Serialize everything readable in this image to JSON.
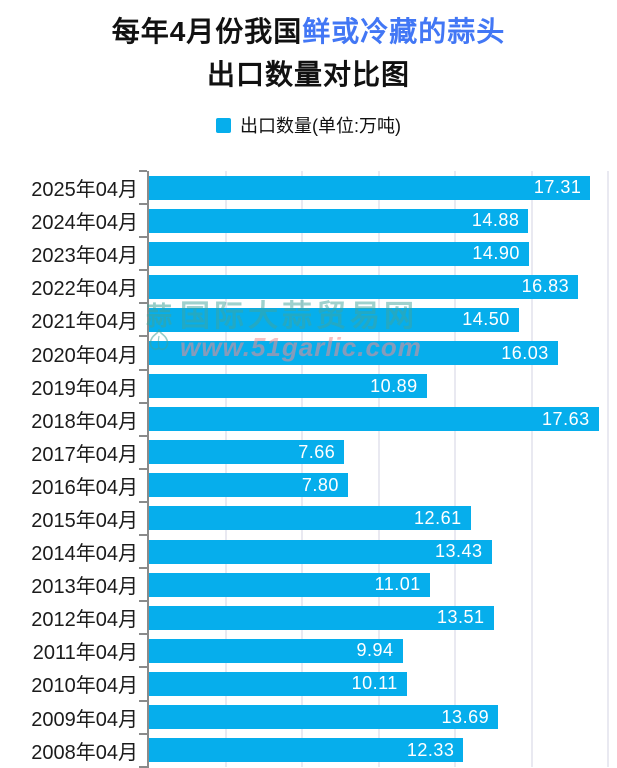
{
  "title": {
    "line1_black": "每年4月份我国",
    "line1_blue": "鲜或冷藏的蒜头",
    "line2": "出口数量对比图"
  },
  "legend": {
    "label": "出口数量(单位:万吨)"
  },
  "watermark": {
    "logo_char": "蒜",
    "site_name": "国际大蒜贸易网",
    "site_url": "www.51garlic.com"
  },
  "colors": {
    "bar": "#06AEEC",
    "title_highlight_blue": "#4277F5",
    "title_black": "#111111",
    "axis_gray": "#8A8A8A",
    "gridline": "#E9E9F1",
    "value_label_white": "#FFFFFF",
    "watermark_teal": "#40A49B",
    "watermark_pink": "#F08C91"
  },
  "chart_data": {
    "type": "bar",
    "orientation": "horizontal",
    "title": "每年4月份我国鲜或冷藏的蒜头出口数量对比图",
    "legend_entries": [
      "出口数量(单位:万吨)"
    ],
    "legend_position": "top",
    "unit": "万吨",
    "grid": "vertical-only",
    "gridline_step": 3,
    "xlim": [
      0,
      18.4
    ],
    "categories": [
      "2025年04月",
      "2024年04月",
      "2023年04月",
      "2022年04月",
      "2021年04月",
      "2020年04月",
      "2019年04月",
      "2018年04月",
      "2017年04月",
      "2016年04月",
      "2015年04月",
      "2014年04月",
      "2013年04月",
      "2012年04月",
      "2011年04月",
      "2010年04月",
      "2009年04月",
      "2008年04月"
    ],
    "values": [
      17.31,
      14.88,
      14.9,
      16.83,
      14.5,
      16.03,
      10.89,
      17.63,
      7.66,
      7.8,
      12.61,
      13.43,
      11.01,
      13.51,
      9.94,
      10.11,
      13.69,
      12.33
    ],
    "value_labels": [
      "17.31",
      "14.88",
      "14.90",
      "16.83",
      "14.50",
      "16.03",
      "10.89",
      "17.63",
      "7.66",
      "7.80",
      "12.61",
      "13.43",
      "11.01",
      "13.51",
      "9.94",
      "10.11",
      "13.69",
      "12.33"
    ]
  }
}
